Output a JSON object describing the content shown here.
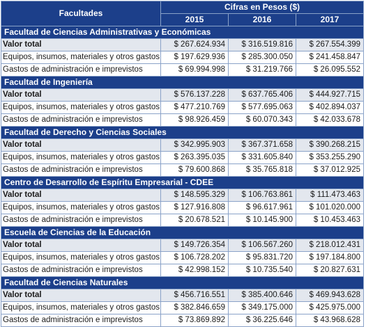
{
  "header": {
    "facultades_label": "Facultades",
    "cifras_label": "Cifras en Pesos ($)",
    "years": [
      "2015",
      "2016",
      "2017"
    ]
  },
  "sections": [
    {
      "title": "Facultad de Ciencias Administrativas y Económicas",
      "rows": [
        {
          "label": "Valor total",
          "values": [
            "$ 267.624.934",
            "$ 316.519.816",
            "$ 267.554.399"
          ]
        },
        {
          "label": "Equipos, insumos, materiales y otros gastos",
          "values": [
            "$ 197.629.936",
            "$ 285.300.050",
            "$ 241.458.847"
          ]
        },
        {
          "label": "Gastos de administración e imprevistos",
          "values": [
            "$ 69.994.998",
            "$ 31.219.766",
            "$ 26.095.552"
          ]
        }
      ]
    },
    {
      "title": "Facultad de Ingeniería",
      "rows": [
        {
          "label": "Valor total",
          "values": [
            "$ 576.137.228",
            "$ 637.765.406",
            "$ 444.927.715"
          ]
        },
        {
          "label": "Equipos, insumos, materiales y otros gastos",
          "values": [
            "$ 477.210.769",
            "$ 577.695.063",
            "$ 402.894.037"
          ]
        },
        {
          "label": "Gastos de administración e imprevistos",
          "values": [
            "$ 98.926.459",
            "$ 60.070.343",
            "$ 42.033.678"
          ]
        }
      ]
    },
    {
      "title": "Facultad de Derecho y Ciencias Sociales",
      "rows": [
        {
          "label": "Valor total",
          "values": [
            "$ 342.995.903",
            "$ 367.371.658",
            "$ 390.268.215"
          ]
        },
        {
          "label": "Equipos, insumos, materiales y otros gastos",
          "values": [
            "$ 263.395.035",
            "$ 331.605.840",
            "$ 353.255.290"
          ]
        },
        {
          "label": "Gastos de administración e imprevistos",
          "values": [
            "$ 79.600.868",
            "$ 35.765.818",
            "$ 37.012.925"
          ]
        }
      ]
    },
    {
      "title": "Centro de Desarrollo de Espíritu Empresarial - CDEE",
      "rows": [
        {
          "label": "Valor total",
          "values": [
            "$ 148.595.329",
            "$ 106.763.861",
            "$ 111.473.463"
          ]
        },
        {
          "label": "Equipos, insumos, materiales y otros gastos",
          "values": [
            "$ 127.916.808",
            "$ 96.617.961",
            "$ 101.020.000"
          ]
        },
        {
          "label": "Gastos de administración e imprevistos",
          "values": [
            "$ 20.678.521",
            "$ 10.145.900",
            "$ 10.453.463"
          ]
        }
      ]
    },
    {
      "title": "Escuela de Ciencias de la Educación",
      "rows": [
        {
          "label": "Valor total",
          "values": [
            "$ 149.726.354",
            "$ 106.567.260",
            "$ 218.012.431"
          ]
        },
        {
          "label": "Equipos, insumos, materiales y otros gastos",
          "values": [
            "$ 106.728.202",
            "$ 95.831.720",
            "$ 197.184.800"
          ]
        },
        {
          "label": "Gastos de administración e imprevistos",
          "values": [
            "$ 42.998.152",
            "$ 10.735.540",
            "$ 20.827.631"
          ]
        }
      ]
    },
    {
      "title": "Facultad de Ciencias Naturales",
      "rows": [
        {
          "label": "Valor total",
          "values": [
            "$ 456.716.551",
            "$ 385.400.646",
            "$ 469.943.628"
          ]
        },
        {
          "label": "Equipos, insumos, materiales y otros gastos",
          "values": [
            "$ 382.846.659",
            "$ 349.175.000",
            "$ 425.975.000"
          ]
        },
        {
          "label": "Gastos de administración e imprevistos",
          "values": [
            "$ 73.869.892",
            "$ 36.225.646",
            "$ 43.968.628"
          ]
        }
      ]
    }
  ]
}
